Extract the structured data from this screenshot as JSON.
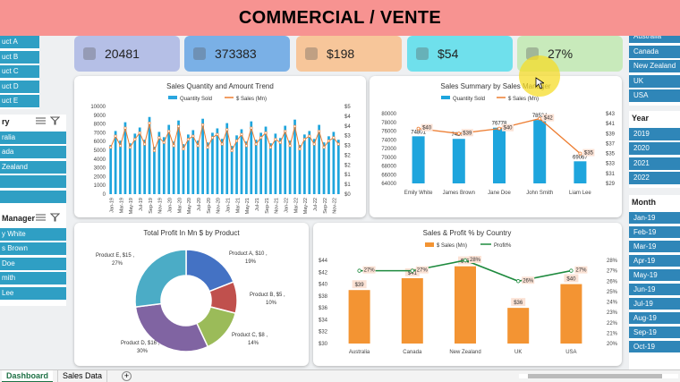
{
  "banner": {
    "title": "COMMERCIAL / VENTE"
  },
  "kpis": [
    {
      "value": "20481",
      "color": "#b5bfe6",
      "icon": "people-icon"
    },
    {
      "value": "373383",
      "color": "#7ab0e6",
      "icon": "document-icon"
    },
    {
      "value": "$198",
      "color": "#f7c69a",
      "icon": "money-icon"
    },
    {
      "value": "$54",
      "color": "#6fe0ec",
      "icon": "coin-icon"
    },
    {
      "value": "27%",
      "color": "#c8eabb",
      "icon": "growth-icon"
    }
  ],
  "product_slicer": {
    "items": [
      "uct A",
      "uct B",
      "uct C",
      "uct D",
      "uct E"
    ]
  },
  "country_slicer": {
    "header": "ry",
    "items": [
      "ralia",
      "ada",
      "Zealand",
      "",
      ""
    ]
  },
  "manager_slicer": {
    "header": "Manager",
    "items": [
      "y White",
      "s Brown",
      "Doe",
      "mith",
      "Lee"
    ]
  },
  "right_country_slicer": {
    "items": [
      "Australia",
      "Canada",
      "New Zealand",
      "UK",
      "USA"
    ]
  },
  "year_slicer": {
    "header": "Year",
    "items": [
      "2019",
      "2020",
      "2021",
      "2022"
    ]
  },
  "month_slicer": {
    "header": "Month",
    "items": [
      "Jan-19",
      "Feb-19",
      "Mar-19",
      "Apr-19",
      "May-19",
      "Jun-19",
      "Jul-19",
      "Aug-19",
      "Sep-19",
      "Oct-19"
    ]
  },
  "tabs": {
    "dashboard": "Dashboard",
    "sales_data": "Sales Data",
    "add": "+"
  },
  "chart_data": [
    {
      "type": "bar",
      "title": "Sales Quantity and Amount Trend",
      "legend": [
        "Quantity Sold",
        "$ Sales (Mn)"
      ],
      "x_labels": [
        "Jan-19",
        "Mar-19",
        "May-19",
        "Jul-19",
        "Sep-19",
        "Nov-19",
        "Jan-20",
        "Mar-20",
        "May-20",
        "Jul-20",
        "Sep-20",
        "Nov-20",
        "Jan-21",
        "Mar-21",
        "May-21",
        "Jul-21",
        "Sep-21",
        "Nov-21",
        "Jan-22",
        "Mar-22",
        "May-22",
        "Jul-22",
        "Sep-22",
        "Nov-22"
      ],
      "y_ticks": [
        "10000",
        "9000",
        "8000",
        "7000",
        "6000",
        "5000",
        "4000",
        "3000",
        "2000",
        "1000",
        "0"
      ],
      "y2_ticks": [
        "$5",
        "$4",
        "$4",
        "$3",
        "$3",
        "$2",
        "$2",
        "$1",
        "$1",
        "$0"
      ],
      "ylim": [
        0,
        10000
      ],
      "y2lim": [
        0,
        5
      ],
      "quantity": [
        5600,
        7200,
        6100,
        8200,
        5800,
        6900,
        7600,
        6200,
        8800,
        5400,
        7100,
        6500,
        7900,
        6000,
        8400,
        5700,
        6800,
        7300,
        6100,
        8600,
        5900,
        7000,
        7500,
        6300,
        8100,
        5500,
        6700,
        7400,
        6000,
        8300,
        6200,
        7000,
        7700,
        5800,
        6900,
        6400,
        7800,
        6100,
        8500,
        5600,
        6800,
        7200,
        6300,
        7900,
        5900,
        6600,
        7100,
        6200
      ],
      "sales": [
        2.9,
        3.6,
        3.0,
        4.1,
        2.9,
        3.4,
        3.8,
        3.1,
        4.4,
        2.7,
        3.5,
        3.2,
        3.9,
        3.0,
        4.2,
        2.8,
        3.4,
        3.6,
        3.0,
        4.3,
        2.9,
        3.5,
        3.7,
        3.1,
        4.0,
        2.7,
        3.3,
        3.7,
        3.0,
        4.1,
        3.1,
        3.5,
        3.8,
        2.9,
        3.4,
        3.2,
        3.9,
        3.0,
        4.2,
        2.8,
        3.4,
        3.6,
        3.1,
        3.9,
        2.9,
        3.3,
        3.5,
        3.1
      ]
    },
    {
      "type": "bar",
      "title": "Sales Summary by Sales Manager",
      "legend": [
        "Quantity Sold",
        "$ Sales (Mn)"
      ],
      "categories": [
        "Emily White",
        "James Brown",
        "Jane Doe",
        "John Smith",
        "Liam Lee"
      ],
      "quantity": [
        74801,
        74208,
        76778,
        78534,
        69067
      ],
      "quantity_labels": [
        "74801",
        "74208",
        "76778",
        "78534",
        "69067"
      ],
      "sales": [
        40,
        39,
        40,
        42,
        35
      ],
      "sales_labels": [
        "$40",
        "$39",
        "$40",
        "$42",
        "$35"
      ],
      "ylim": [
        64000,
        80000
      ],
      "y_ticks": [
        "80000",
        "78000",
        "76000",
        "74000",
        "72000",
        "70000",
        "68000",
        "66000",
        "64000"
      ],
      "y2lim": [
        29,
        43
      ],
      "y2_ticks": [
        "$43",
        "$41",
        "$39",
        "$37",
        "$35",
        "$33",
        "$31",
        "$29"
      ]
    },
    {
      "type": "pie",
      "title": "Total Profit In Mn $ by Product",
      "slices": [
        {
          "label": "Product A, $10 ,",
          "pct": "19%",
          "value": 19,
          "color": "#4472c4"
        },
        {
          "label": "Product B, $5 ,",
          "pct": "10%",
          "value": 10,
          "color": "#c0504d"
        },
        {
          "label": "Product C, $8 ,",
          "pct": "14%",
          "value": 14,
          "color": "#9bbb59"
        },
        {
          "label": "Product D, $16 ,",
          "pct": "30%",
          "value": 30,
          "color": "#8064a2"
        },
        {
          "label": "Product E, $15 ,",
          "pct": "27%",
          "value": 27,
          "color": "#4bacc6"
        }
      ]
    },
    {
      "type": "bar",
      "title": "Sales & Profit % by Country",
      "legend": [
        "$ Sales (Mn)",
        "Profit%"
      ],
      "categories": [
        "Australia",
        "Canada",
        "New Zealand",
        "UK",
        "USA"
      ],
      "sales": [
        39,
        41,
        43,
        36,
        40
      ],
      "sales_labels": [
        "$39",
        "$41",
        "$43",
        "$36",
        "$40"
      ],
      "profit": [
        27,
        27,
        28,
        26,
        27
      ],
      "profit_labels": [
        "27%",
        "27%",
        "28%",
        "26%",
        "27%"
      ],
      "ylim": [
        30,
        44
      ],
      "y_ticks": [
        "$44",
        "$42",
        "$40",
        "$38",
        "$36",
        "$34",
        "$32",
        "$30"
      ],
      "y2lim": [
        20,
        28
      ],
      "y2_ticks": [
        "28%",
        "27%",
        "26%",
        "25%",
        "24%",
        "23%",
        "22%",
        "21%",
        "20%"
      ]
    }
  ]
}
